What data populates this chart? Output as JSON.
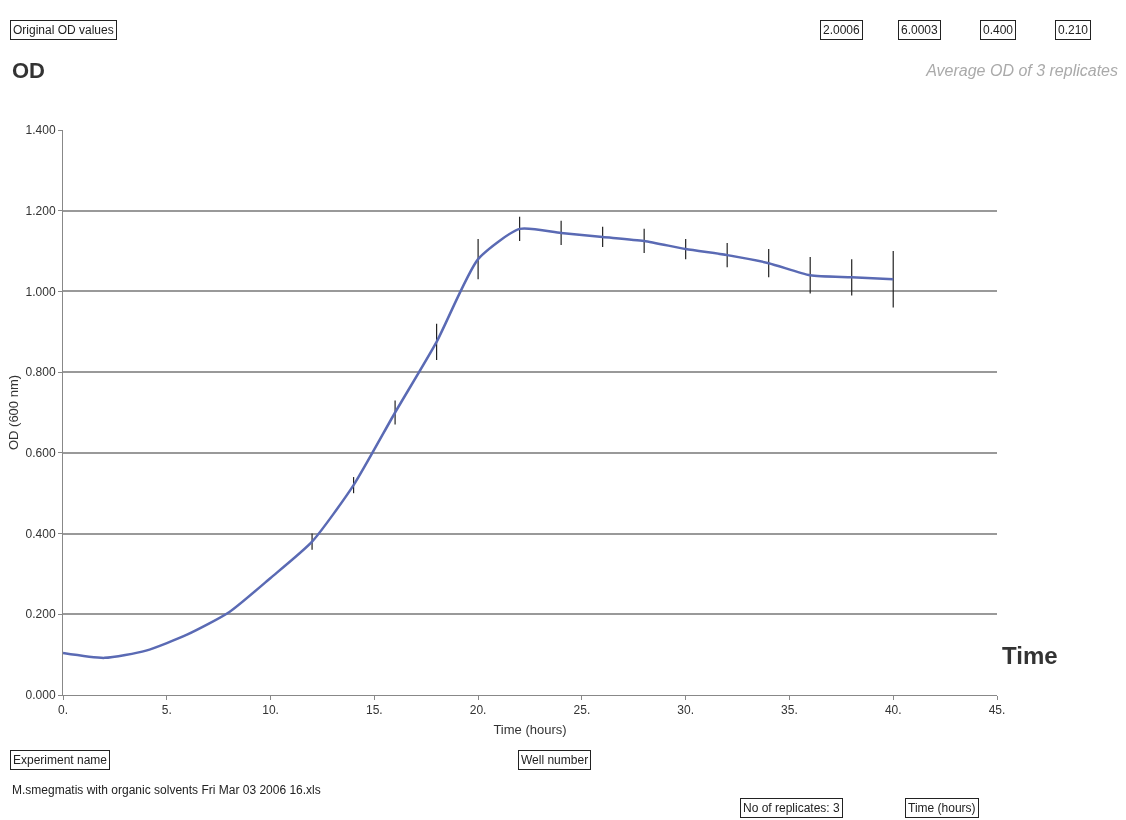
{
  "chart_data": {
    "type": "line",
    "title": "Average OD of 3 replicates",
    "xlabel": "Time (hours)",
    "ylabel": "OD (600 nm)",
    "x": [
      0,
      2,
      4,
      6,
      8,
      10,
      12,
      14,
      16,
      18,
      20,
      22,
      24,
      26,
      28,
      30,
      32,
      34,
      36,
      38,
      40
    ],
    "series": [
      {
        "color": "#5a6ab4",
        "values": [
          0.104,
          0.092,
          0.11,
          0.15,
          0.205,
          0.29,
          0.38,
          0.52,
          0.7,
          0.875,
          1.08,
          1.155,
          1.145,
          1.135,
          1.125,
          1.105,
          1.09,
          1.07,
          1.04,
          1.035,
          1.03
        ],
        "errors": [
          null,
          null,
          null,
          null,
          null,
          null,
          0.02,
          0.02,
          0.03,
          0.045,
          0.05,
          0.03,
          0.03,
          0.025,
          0.03,
          0.025,
          0.03,
          0.035,
          0.045,
          0.045,
          0.07
        ]
      }
    ],
    "xlim": [
      0,
      45
    ],
    "xticks": [
      {
        "value": 0,
        "label": "0."
      },
      {
        "value": 5,
        "label": "5."
      },
      {
        "value": 10,
        "label": "10."
      },
      {
        "value": 15,
        "label": "15."
      },
      {
        "value": 20,
        "label": "20."
      },
      {
        "value": 25,
        "label": "25."
      },
      {
        "value": 30,
        "label": "30."
      },
      {
        "value": 35,
        "label": "35."
      },
      {
        "value": 40,
        "label": "40."
      },
      {
        "value": 45,
        "label": "45."
      }
    ],
    "ylim": [
      0,
      1.4
    ],
    "yticks": [
      {
        "value": 0,
        "label": "0.000"
      },
      {
        "value": 0.2,
        "label": "0.200"
      },
      {
        "value": 0.4,
        "label": "0.400"
      },
      {
        "value": 0.6,
        "label": "0.600"
      },
      {
        "value": 0.8,
        "label": "0.800"
      },
      {
        "value": 1.0,
        "label": "1.000"
      },
      {
        "value": 1.2,
        "label": "1.200"
      },
      {
        "value": 1.4,
        "label": "1.400"
      }
    ],
    "grid": "y",
    "legend": false,
    "marker": "none",
    "line_style": "solid",
    "annotations": [
      "Original OD values",
      "2.0006",
      "6.0003",
      "0.400",
      "0.210",
      "OD",
      "Time",
      "Experiment name",
      "Well number",
      "M.smegmatis with organic solvents Fri Mar 03 2006 16.xls",
      "No of replicates: 3",
      "Time (hours)"
    ]
  }
}
